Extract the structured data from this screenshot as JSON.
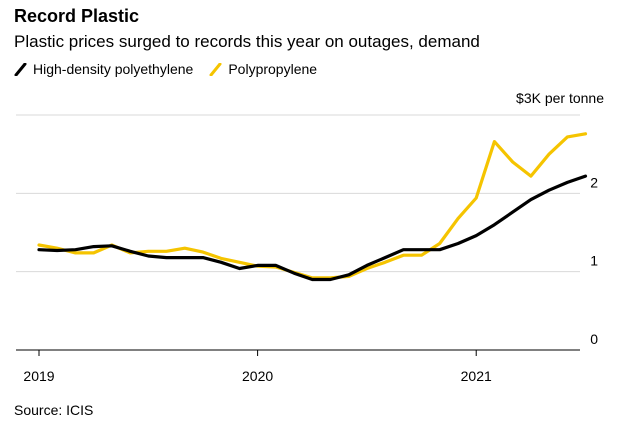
{
  "header": {
    "title": "Record Plastic",
    "subtitle": "Plastic prices surged to records this year on outages, demand"
  },
  "source": "Source: ICIS",
  "colors": {
    "hdpe": "#000000",
    "pp": "#f5c400",
    "grid": "#d9d9d9",
    "axis": "#000000"
  },
  "chart_data": {
    "type": "line",
    "title": "Record Plastic",
    "subtitle": "Plastic prices surged to records this year on outages, demand",
    "ylabel": "$3K per tonne",
    "ylim": [
      0,
      3
    ],
    "yticks": [
      0,
      1,
      2
    ],
    "ytick_labels": [
      "0",
      "1",
      "2"
    ],
    "xlim": [
      2019.0,
      2021.58
    ],
    "xticks": [
      2019,
      2020,
      2021
    ],
    "xtick_labels": [
      "2019",
      "2020",
      "2021"
    ],
    "grid": true,
    "legend_position": "top-left",
    "series": [
      {
        "name": "High-density polyethylene",
        "color": "#000000",
        "points": [
          [
            2019.0,
            1.28
          ],
          [
            2019.083,
            1.27
          ],
          [
            2019.167,
            1.28
          ],
          [
            2019.25,
            1.32
          ],
          [
            2019.333,
            1.33
          ],
          [
            2019.417,
            1.26
          ],
          [
            2019.5,
            1.2
          ],
          [
            2019.583,
            1.18
          ],
          [
            2019.667,
            1.18
          ],
          [
            2019.75,
            1.18
          ],
          [
            2019.833,
            1.12
          ],
          [
            2019.917,
            1.04
          ],
          [
            2020.0,
            1.08
          ],
          [
            2020.083,
            1.08
          ],
          [
            2020.167,
            0.98
          ],
          [
            2020.25,
            0.9
          ],
          [
            2020.333,
            0.9
          ],
          [
            2020.417,
            0.96
          ],
          [
            2020.5,
            1.08
          ],
          [
            2020.583,
            1.18
          ],
          [
            2020.667,
            1.28
          ],
          [
            2020.75,
            1.28
          ],
          [
            2020.833,
            1.28
          ],
          [
            2020.917,
            1.36
          ],
          [
            2021.0,
            1.46
          ],
          [
            2021.083,
            1.6
          ],
          [
            2021.167,
            1.76
          ],
          [
            2021.25,
            1.92
          ],
          [
            2021.333,
            2.04
          ],
          [
            2021.417,
            2.14
          ],
          [
            2021.5,
            2.22
          ]
        ]
      },
      {
        "name": "Polypropylene",
        "color": "#f5c400",
        "points": [
          [
            2019.0,
            1.34
          ],
          [
            2019.083,
            1.3
          ],
          [
            2019.167,
            1.24
          ],
          [
            2019.25,
            1.24
          ],
          [
            2019.333,
            1.34
          ],
          [
            2019.417,
            1.24
          ],
          [
            2019.5,
            1.26
          ],
          [
            2019.583,
            1.26
          ],
          [
            2019.667,
            1.3
          ],
          [
            2019.75,
            1.25
          ],
          [
            2019.833,
            1.17
          ],
          [
            2019.917,
            1.12
          ],
          [
            2020.0,
            1.07
          ],
          [
            2020.083,
            1.06
          ],
          [
            2020.167,
            0.99
          ],
          [
            2020.25,
            0.92
          ],
          [
            2020.333,
            0.92
          ],
          [
            2020.417,
            0.94
          ],
          [
            2020.5,
            1.04
          ],
          [
            2020.583,
            1.12
          ],
          [
            2020.667,
            1.21
          ],
          [
            2020.75,
            1.21
          ],
          [
            2020.833,
            1.36
          ],
          [
            2020.917,
            1.68
          ],
          [
            2021.0,
            1.94
          ],
          [
            2021.083,
            2.66
          ],
          [
            2021.167,
            2.4
          ],
          [
            2021.25,
            2.22
          ],
          [
            2021.333,
            2.5
          ],
          [
            2021.417,
            2.72
          ],
          [
            2021.5,
            2.76
          ]
        ]
      }
    ]
  }
}
